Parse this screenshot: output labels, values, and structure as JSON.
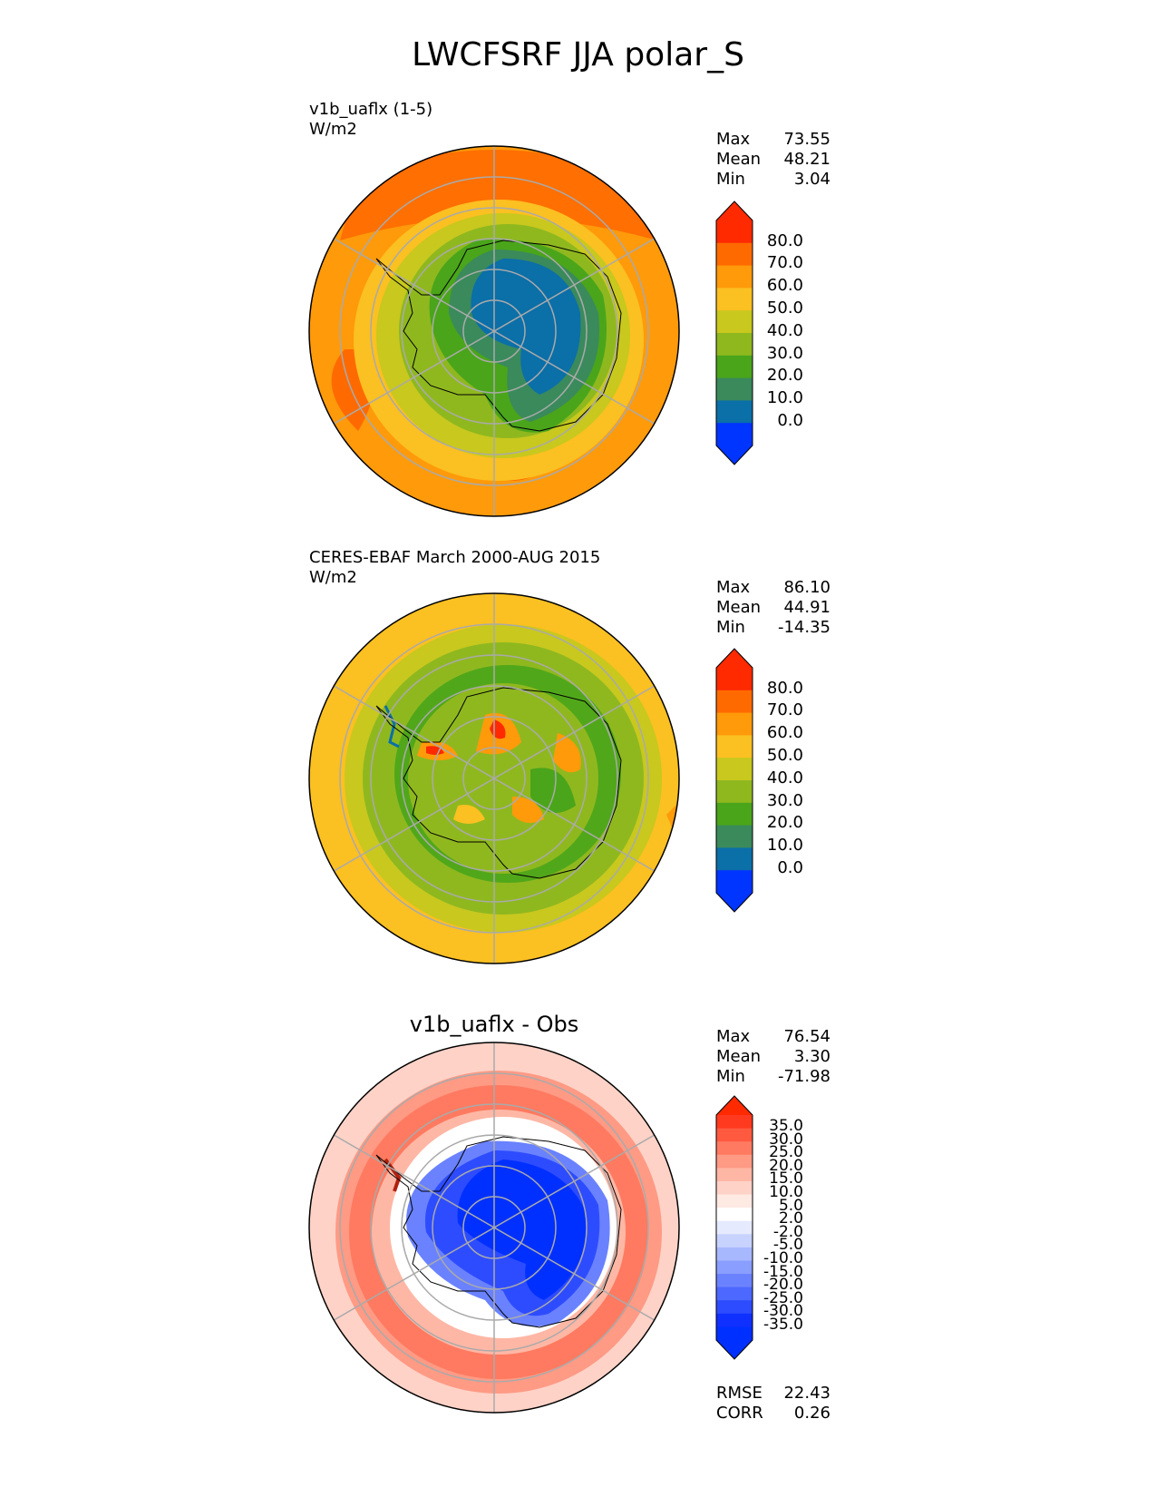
{
  "title": "LWCFSRF JJA polar_S",
  "panels": [
    {
      "id": "test",
      "label": "v1b_uaflx (1-5)",
      "units": "W/m2",
      "stats": [
        {
          "k": "Max",
          "v": "73.55"
        },
        {
          "k": "Mean",
          "v": "48.21"
        },
        {
          "k": "Min",
          "v": "3.04"
        }
      ],
      "colorbar": {
        "labels": [
          "80.0",
          "70.0",
          "60.0",
          "50.0",
          "40.0",
          "30.0",
          "20.0",
          "10.0",
          "0.0"
        ],
        "colors": [
          "#ff2a00",
          "#ff6a00",
          "#ff9a0a",
          "#fbc021",
          "#c8c81e",
          "#8fb81f",
          "#4aa51a",
          "#3a8a5c",
          "#0b6fa8",
          "#0034ff"
        ],
        "cap_top": "#ff2a00",
        "cap_bottom": "#0034ff"
      }
    },
    {
      "id": "ref",
      "label": "CERES-EBAF March 2000-AUG 2015",
      "units": "W/m2",
      "stats": [
        {
          "k": "Max",
          "v": "86.10"
        },
        {
          "k": "Mean",
          "v": "44.91"
        },
        {
          "k": "Min",
          "v": "-14.35"
        }
      ],
      "colorbar": {
        "labels": [
          "80.0",
          "70.0",
          "60.0",
          "50.0",
          "40.0",
          "30.0",
          "20.0",
          "10.0",
          "0.0"
        ],
        "colors": [
          "#ff2a00",
          "#ff6a00",
          "#ff9a0a",
          "#fbc021",
          "#c8c81e",
          "#8fb81f",
          "#4aa51a",
          "#3a8a5c",
          "#0b6fa8",
          "#0034ff"
        ],
        "cap_top": "#ff2a00",
        "cap_bottom": "#0034ff"
      }
    },
    {
      "id": "diff",
      "title": "v1b_uaflx - Obs",
      "stats": [
        {
          "k": "Max",
          "v": "76.54"
        },
        {
          "k": "Mean",
          "v": "3.30"
        },
        {
          "k": "Min",
          "v": "-71.98"
        }
      ],
      "metrics": [
        {
          "k": "RMSE",
          "v": "22.43"
        },
        {
          "k": "CORR",
          "v": "0.26"
        }
      ],
      "colorbar": {
        "labels": [
          "35.0",
          "30.0",
          "25.0",
          "20.0",
          "15.0",
          "10.0",
          "5.0",
          "2.0",
          "-2.0",
          "-5.0",
          "-10.0",
          "-15.0",
          "-20.0",
          "-25.0",
          "-30.0",
          "-35.0"
        ],
        "colors": [
          "#ff3a1e",
          "#ff5a40",
          "#ff7a60",
          "#ff9a85",
          "#ffb7a5",
          "#ffd2c7",
          "#ffe9e3",
          "#ffffff",
          "#e6eaff",
          "#c8d2ff",
          "#a8b8ff",
          "#8a9eff",
          "#6a82ff",
          "#4c68ff",
          "#2e4cff",
          "#1030ff",
          "#0030ff"
        ],
        "cap_top": "#ff2a00",
        "cap_bottom": "#0030ff"
      }
    }
  ]
}
